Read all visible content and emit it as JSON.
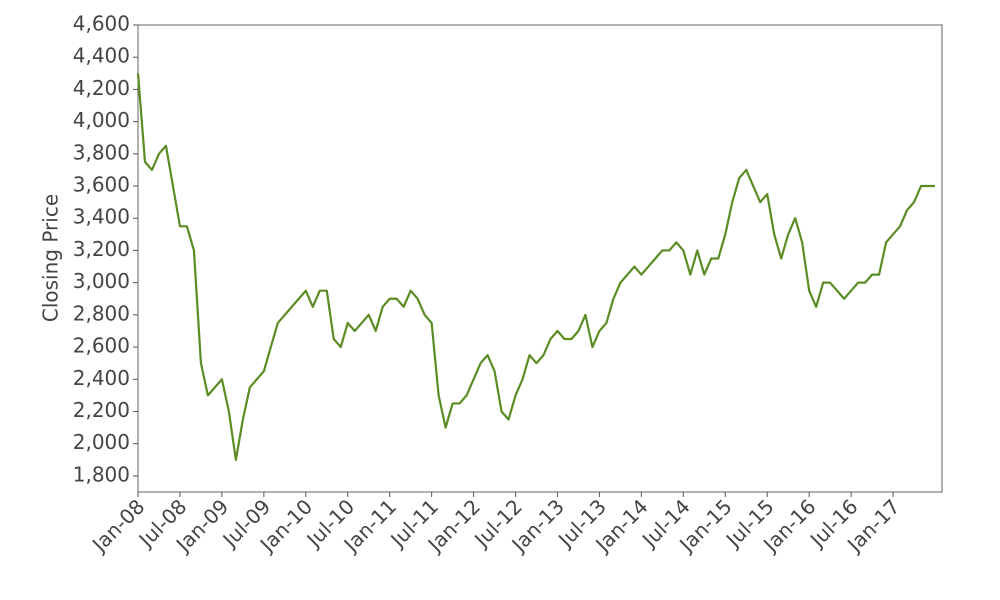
{
  "chart_data": {
    "type": "line",
    "y_label": "Closing Price",
    "color": "#5b8c23",
    "x": [
      "2008-01",
      "2008-02",
      "2008-03",
      "2008-04",
      "2008-05",
      "2008-06",
      "2008-07",
      "2008-08",
      "2008-09",
      "2008-10",
      "2008-11",
      "2008-12",
      "2009-01",
      "2009-02",
      "2009-03",
      "2009-04",
      "2009-05",
      "2009-06",
      "2009-07",
      "2009-08",
      "2009-09",
      "2009-10",
      "2009-11",
      "2009-12",
      "2010-01",
      "2010-02",
      "2010-03",
      "2010-04",
      "2010-05",
      "2010-06",
      "2010-07",
      "2010-08",
      "2010-09",
      "2010-10",
      "2010-11",
      "2010-12",
      "2011-01",
      "2011-02",
      "2011-03",
      "2011-04",
      "2011-05",
      "2011-06",
      "2011-07",
      "2011-08",
      "2011-09",
      "2011-10",
      "2011-11",
      "2011-12",
      "2012-01",
      "2012-02",
      "2012-03",
      "2012-04",
      "2012-05",
      "2012-06",
      "2012-07",
      "2012-08",
      "2012-09",
      "2012-10",
      "2012-11",
      "2012-12",
      "2013-01",
      "2013-02",
      "2013-03",
      "2013-04",
      "2013-05",
      "2013-06",
      "2013-07",
      "2013-08",
      "2013-09",
      "2013-10",
      "2013-11",
      "2013-12",
      "2014-01",
      "2014-02",
      "2014-03",
      "2014-04",
      "2014-05",
      "2014-06",
      "2014-07",
      "2014-08",
      "2014-09",
      "2014-10",
      "2014-11",
      "2014-12",
      "2015-01",
      "2015-02",
      "2015-03",
      "2015-04",
      "2015-05",
      "2015-06",
      "2015-07",
      "2015-08",
      "2015-09",
      "2015-10",
      "2015-11",
      "2015-12",
      "2016-01",
      "2016-02",
      "2016-03",
      "2016-04",
      "2016-05",
      "2016-06",
      "2016-07",
      "2016-08",
      "2016-09",
      "2016-10",
      "2016-11",
      "2016-12",
      "2017-01",
      "2017-02",
      "2017-03",
      "2017-04",
      "2017-05",
      "2017-06",
      "2017-07"
    ],
    "values": [
      4300,
      3750,
      3700,
      3800,
      3850,
      3600,
      3350,
      3350,
      3200,
      2500,
      2300,
      2350,
      2400,
      2200,
      1900,
      2150,
      2350,
      2400,
      2450,
      2600,
      2750,
      2800,
      2850,
      2900,
      2950,
      2850,
      2950,
      2950,
      2650,
      2600,
      2750,
      2700,
      2750,
      2800,
      2700,
      2850,
      2900,
      2900,
      2850,
      2950,
      2900,
      2800,
      2750,
      2300,
      2100,
      2250,
      2250,
      2300,
      2400,
      2500,
      2550,
      2450,
      2200,
      2150,
      2300,
      2400,
      2550,
      2500,
      2550,
      2650,
      2700,
      2650,
      2650,
      2700,
      2800,
      2600,
      2700,
      2750,
      2900,
      3000,
      3050,
      3100,
      3050,
      3100,
      3150,
      3200,
      3200,
      3250,
      3200,
      3050,
      3200,
      3050,
      3150,
      3150,
      3300,
      3500,
      3650,
      3700,
      3600,
      3500,
      3550,
      3300,
      3150,
      3300,
      3400,
      3250,
      2950,
      2850,
      3000,
      3000,
      2950,
      2900,
      2950,
      3000,
      3000,
      3050,
      3050,
      3250,
      3300,
      3350,
      3450,
      3500,
      3600,
      3600,
      3600
    ],
    "xlim": [
      "2008-01",
      "2017-08"
    ],
    "xticks": [
      {
        "value": "2008-01",
        "label": "Jan-08"
      },
      {
        "value": "2008-07",
        "label": "Jul-08"
      },
      {
        "value": "2009-01",
        "label": "Jan-09"
      },
      {
        "value": "2009-07",
        "label": "Jul-09"
      },
      {
        "value": "2010-01",
        "label": "Jan-10"
      },
      {
        "value": "2010-07",
        "label": "Jul-10"
      },
      {
        "value": "2011-01",
        "label": "Jan-11"
      },
      {
        "value": "2011-07",
        "label": "Jul-11"
      },
      {
        "value": "2012-01",
        "label": "Jan-12"
      },
      {
        "value": "2012-07",
        "label": "Jul-12"
      },
      {
        "value": "2013-01",
        "label": "Jan-13"
      },
      {
        "value": "2013-07",
        "label": "Jul-13"
      },
      {
        "value": "2014-01",
        "label": "Jan-14"
      },
      {
        "value": "2014-07",
        "label": "Jul-14"
      },
      {
        "value": "2015-01",
        "label": "Jan-15"
      },
      {
        "value": "2015-07",
        "label": "Jul-15"
      },
      {
        "value": "2016-01",
        "label": "Jan-16"
      },
      {
        "value": "2016-07",
        "label": "Jul-16"
      },
      {
        "value": "2017-01",
        "label": "Jan-17"
      }
    ],
    "ylim": [
      1700,
      4600
    ],
    "yticks": [
      {
        "value": 1800,
        "label": "1,800"
      },
      {
        "value": 2000,
        "label": "2,000"
      },
      {
        "value": 2200,
        "label": "2,200"
      },
      {
        "value": 2400,
        "label": "2,400"
      },
      {
        "value": 2600,
        "label": "2,600"
      },
      {
        "value": 2800,
        "label": "2,800"
      },
      {
        "value": 3000,
        "label": "3,000"
      },
      {
        "value": 3200,
        "label": "3,200"
      },
      {
        "value": 3400,
        "label": "3,400"
      },
      {
        "value": 3600,
        "label": "3,600"
      },
      {
        "value": 3800,
        "label": "3,800"
      },
      {
        "value": 4000,
        "label": "4,000"
      },
      {
        "value": 4200,
        "label": "4,200"
      },
      {
        "value": 4400,
        "label": "4,400"
      },
      {
        "value": 4600,
        "label": "4,600"
      }
    ],
    "grid": false
  }
}
